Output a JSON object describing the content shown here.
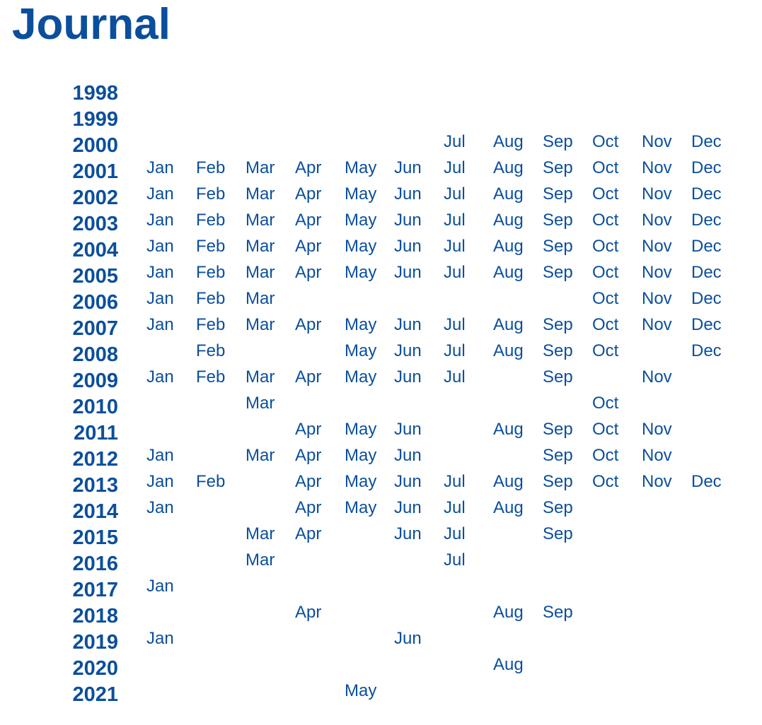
{
  "title": "Journal",
  "month_names": [
    "Jan",
    "Feb",
    "Mar",
    "Apr",
    "May",
    "Jun",
    "Jul",
    "Aug",
    "Sep",
    "Oct",
    "Nov",
    "Dec"
  ],
  "archive": [
    {
      "year": "1998",
      "months": []
    },
    {
      "year": "1999",
      "months": []
    },
    {
      "year": "2000",
      "months": [
        "Jul",
        "Aug",
        "Sep",
        "Oct",
        "Nov",
        "Dec"
      ]
    },
    {
      "year": "2001",
      "months": [
        "Jan",
        "Feb",
        "Mar",
        "Apr",
        "May",
        "Jun",
        "Jul",
        "Aug",
        "Sep",
        "Oct",
        "Nov",
        "Dec"
      ]
    },
    {
      "year": "2002",
      "months": [
        "Jan",
        "Feb",
        "Mar",
        "Apr",
        "May",
        "Jun",
        "Jul",
        "Aug",
        "Sep",
        "Oct",
        "Nov",
        "Dec"
      ]
    },
    {
      "year": "2003",
      "months": [
        "Jan",
        "Feb",
        "Mar",
        "Apr",
        "May",
        "Jun",
        "Jul",
        "Aug",
        "Sep",
        "Oct",
        "Nov",
        "Dec"
      ]
    },
    {
      "year": "2004",
      "months": [
        "Jan",
        "Feb",
        "Mar",
        "Apr",
        "May",
        "Jun",
        "Jul",
        "Aug",
        "Sep",
        "Oct",
        "Nov",
        "Dec"
      ]
    },
    {
      "year": "2005",
      "months": [
        "Jan",
        "Feb",
        "Mar",
        "Apr",
        "May",
        "Jun",
        "Jul",
        "Aug",
        "Sep",
        "Oct",
        "Nov",
        "Dec"
      ]
    },
    {
      "year": "2006",
      "months": [
        "Jan",
        "Feb",
        "Mar",
        "Oct",
        "Nov",
        "Dec"
      ]
    },
    {
      "year": "2007",
      "months": [
        "Jan",
        "Feb",
        "Mar",
        "Apr",
        "May",
        "Jun",
        "Jul",
        "Aug",
        "Sep",
        "Oct",
        "Nov",
        "Dec"
      ]
    },
    {
      "year": "2008",
      "months": [
        "Feb",
        "May",
        "Jun",
        "Jul",
        "Aug",
        "Sep",
        "Oct",
        "Dec"
      ]
    },
    {
      "year": "2009",
      "months": [
        "Jan",
        "Feb",
        "Mar",
        "Apr",
        "May",
        "Jun",
        "Jul",
        "Sep",
        "Nov"
      ]
    },
    {
      "year": "2010",
      "months": [
        "Mar",
        "Oct"
      ]
    },
    {
      "year": "2011",
      "months": [
        "Apr",
        "May",
        "Jun",
        "Aug",
        "Sep",
        "Oct",
        "Nov"
      ]
    },
    {
      "year": "2012",
      "months": [
        "Jan",
        "Mar",
        "Apr",
        "May",
        "Jun",
        "Sep",
        "Oct",
        "Nov"
      ]
    },
    {
      "year": "2013",
      "months": [
        "Jan",
        "Feb",
        "Apr",
        "May",
        "Jun",
        "Jul",
        "Aug",
        "Sep",
        "Oct",
        "Nov",
        "Dec"
      ]
    },
    {
      "year": "2014",
      "months": [
        "Jan",
        "Apr",
        "May",
        "Jun",
        "Jul",
        "Aug",
        "Sep"
      ]
    },
    {
      "year": "2015",
      "months": [
        "Mar",
        "Apr",
        "Jun",
        "Jul",
        "Sep"
      ]
    },
    {
      "year": "2016",
      "months": [
        "Mar",
        "Jul"
      ]
    },
    {
      "year": "2017",
      "months": [
        "Jan"
      ]
    },
    {
      "year": "2018",
      "months": [
        "Apr",
        "Aug",
        "Sep"
      ]
    },
    {
      "year": "2019",
      "months": [
        "Jan",
        "Jun"
      ]
    },
    {
      "year": "2020",
      "months": [
        "Aug"
      ]
    },
    {
      "year": "2021",
      "months": [
        "May"
      ]
    }
  ],
  "colors": {
    "link": "#0b4f9c"
  }
}
